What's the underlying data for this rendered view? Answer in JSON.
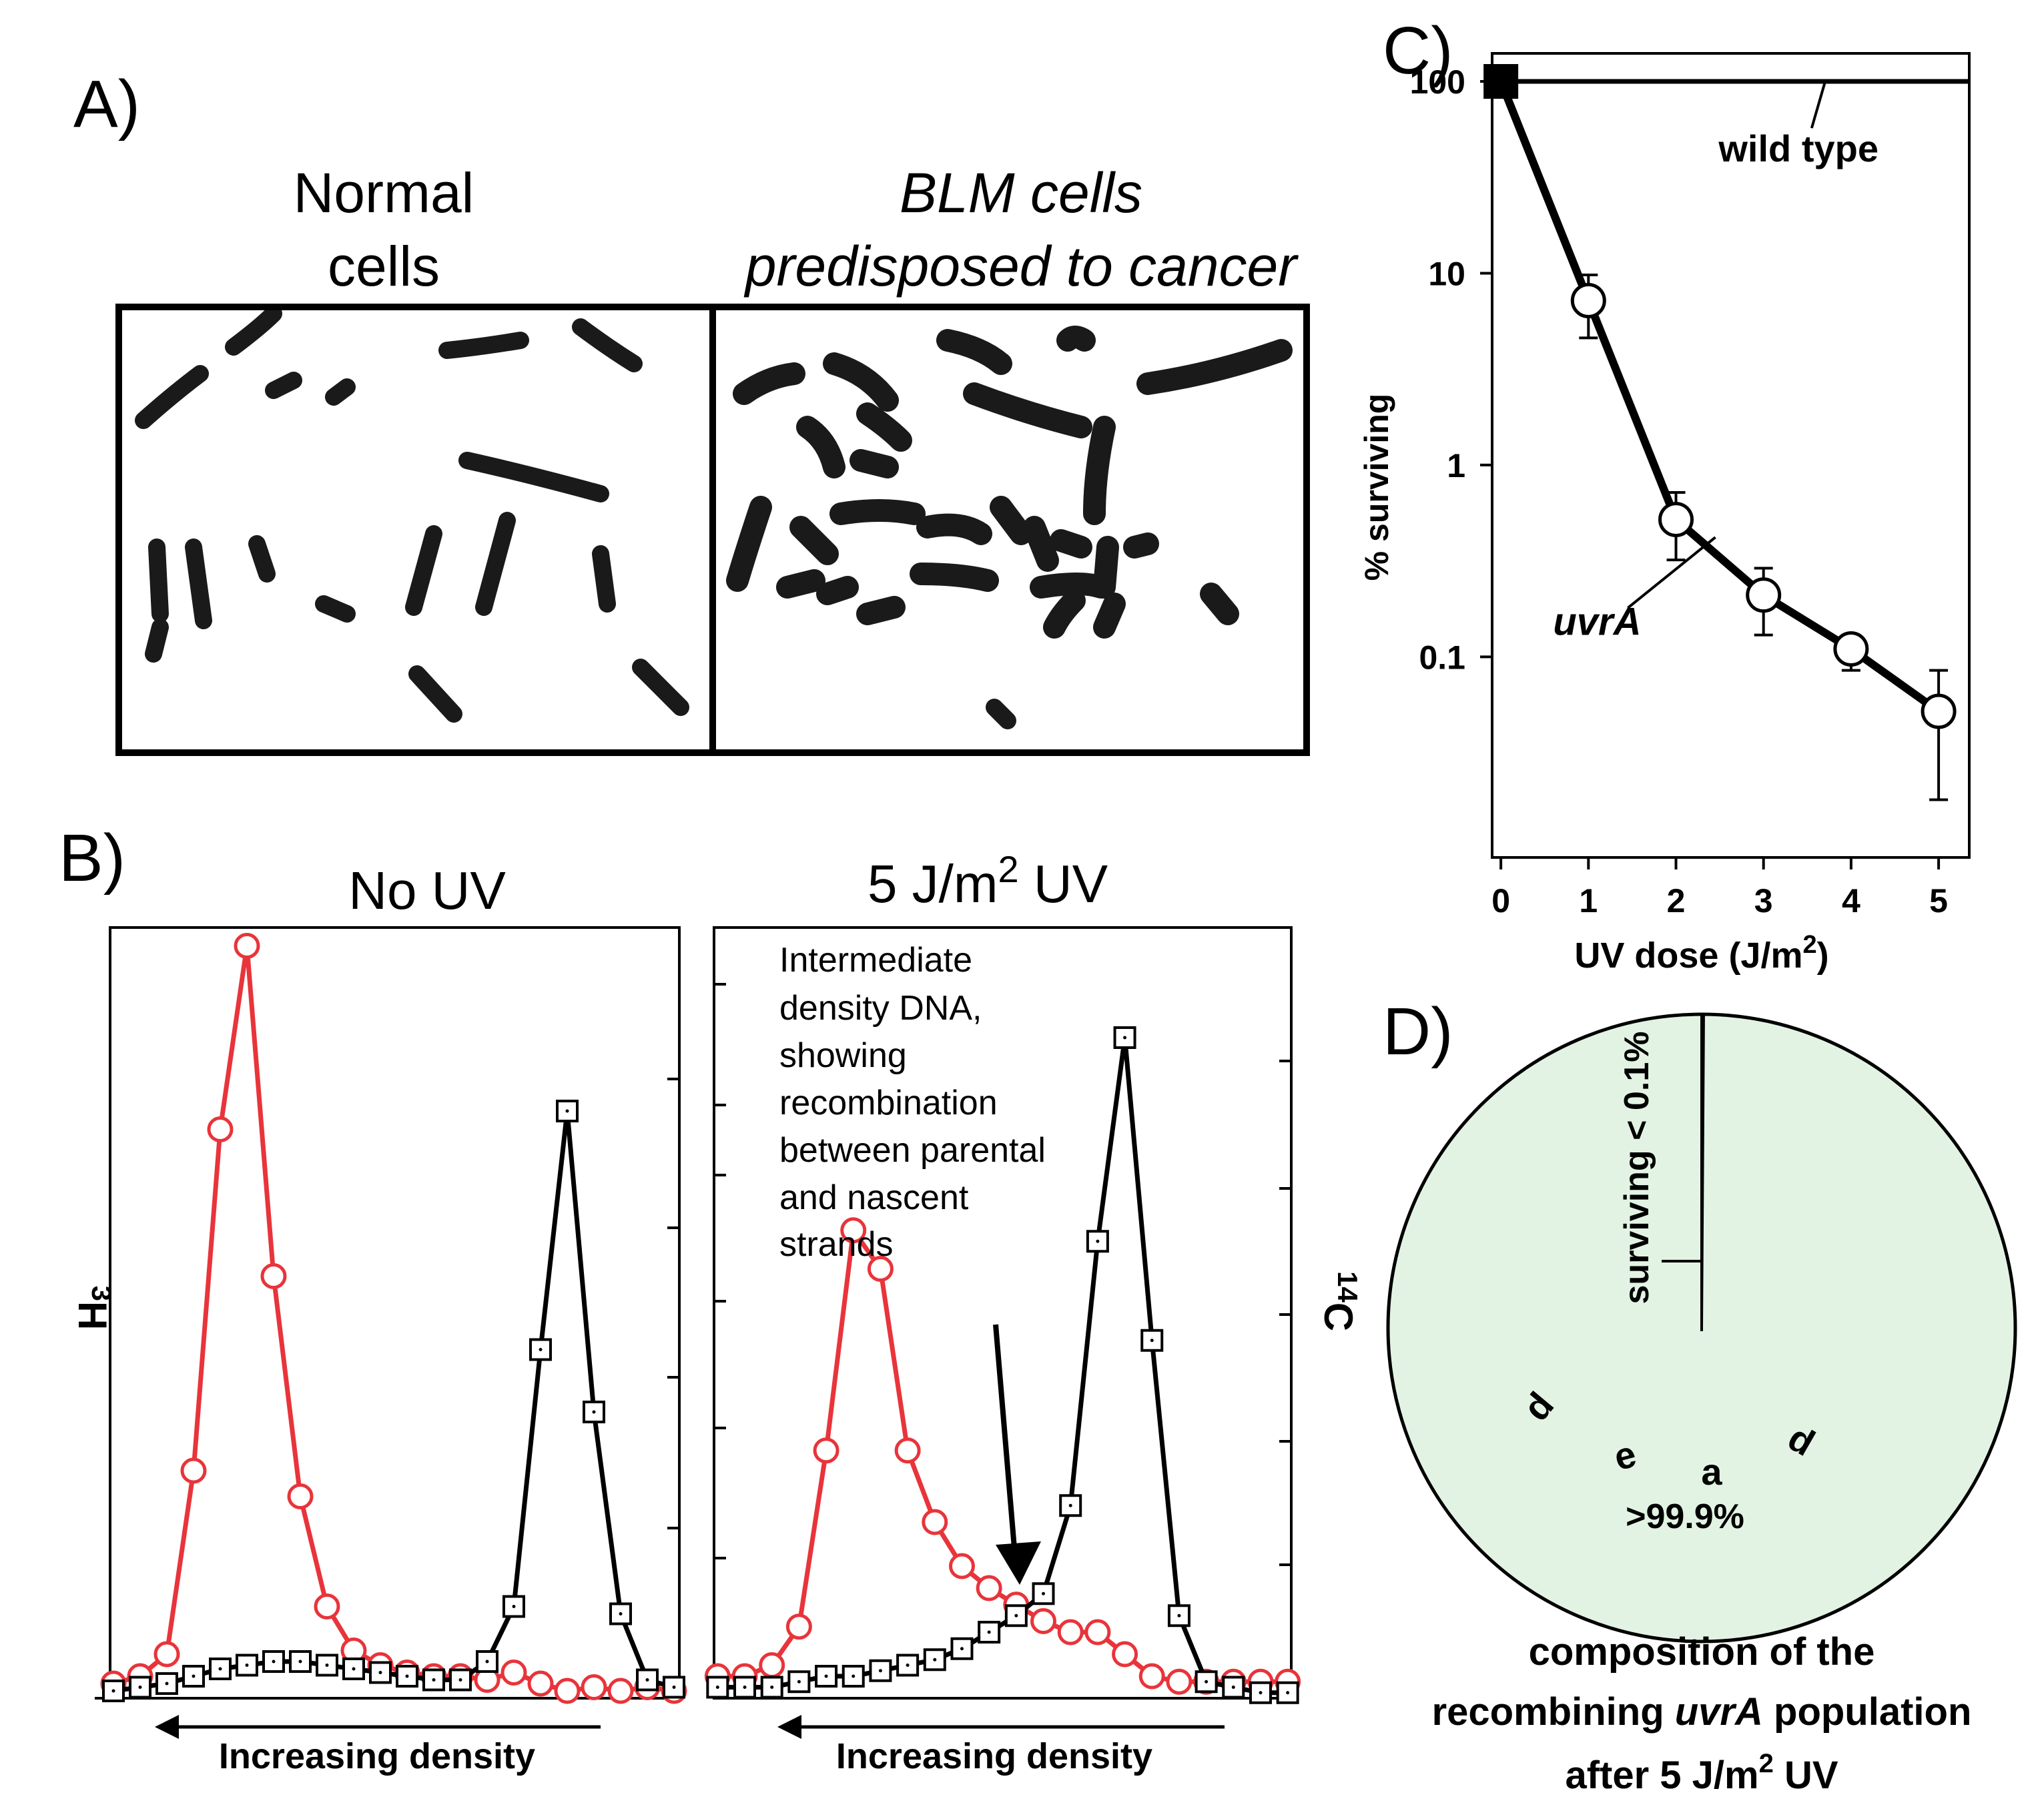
{
  "colors": {
    "red": "#e8343a",
    "black": "#000000",
    "pie_fill": "#e2f3e3",
    "chromosome": "#1a1a1a"
  },
  "panelA": {
    "label": "A)",
    "normal_title_1": "Normal",
    "normal_title_2": "cells",
    "blm_title_1": "BLM cells",
    "blm_title_2": "predisposed to cancer"
  },
  "panelB": {
    "label": "B)"
  },
  "panelC": {
    "label": "C)"
  },
  "panelD": {
    "label": "D)",
    "surviving_label": "surviving < 0.1%",
    "dead_letters": [
      "d",
      "e",
      "a",
      "d"
    ],
    "dead_percent": ">99.9%",
    "caption_line1": "composition of the",
    "caption_line2_pre": "recombining ",
    "caption_line2_italic": "uvrA",
    "caption_line2_post": " population",
    "caption_line3_pre": "after 5 J/m",
    "caption_line3_sup": "2",
    "caption_line3_post": " UV"
  },
  "chart_data": [
    {
      "id": "B-left",
      "type": "line",
      "title": "No UV",
      "xlabel": "Increasing density",
      "ylabel_left": "3H",
      "x": [
        1,
        2,
        3,
        4,
        5,
        6,
        7,
        8,
        9,
        10,
        11,
        12,
        13,
        14,
        15,
        16,
        17,
        18,
        19,
        20,
        21,
        22
      ],
      "series": [
        {
          "name": "3H",
          "color": "red",
          "marker": "circle",
          "values": [
            0.4,
            0.6,
            1.2,
            6.2,
            15.5,
            20.5,
            11.5,
            5.5,
            2.5,
            1.3,
            0.9,
            0.7,
            0.6,
            0.6,
            0.5,
            0.7,
            0.4,
            0.2,
            0.3,
            0.2,
            0.3,
            0.2
          ]
        },
        {
          "name": "14C",
          "color": "black",
          "marker": "square",
          "values": [
            0.2,
            0.3,
            0.4,
            0.6,
            0.8,
            0.9,
            1.0,
            1.0,
            0.9,
            0.8,
            0.7,
            0.6,
            0.5,
            0.5,
            1.0,
            2.5,
            9.5,
            16.0,
            7.8,
            2.3,
            0.5,
            0.3
          ]
        }
      ],
      "ylim": [
        0,
        21
      ],
      "xlim": [
        0.5,
        22.5
      ]
    },
    {
      "id": "B-right",
      "type": "line",
      "title_pre": "5 J/m",
      "title_sup": "2",
      "title_post": " UV",
      "xlabel": "Increasing density",
      "ylabel_right": "14C",
      "annotation": [
        "Intermediate",
        "density DNA,",
        "showing",
        "recombination",
        "between parental",
        "and nascent",
        "strands"
      ],
      "x": [
        1,
        2,
        3,
        4,
        5,
        6,
        7,
        8,
        9,
        10,
        11,
        12,
        13,
        14,
        15,
        16,
        17,
        18,
        19,
        20,
        21,
        22
      ],
      "series": [
        {
          "name": "3H",
          "color": "red",
          "marker": "circle",
          "values": [
            0.4,
            0.4,
            0.6,
            1.3,
            4.5,
            8.5,
            7.8,
            4.5,
            3.2,
            2.4,
            2.0,
            1.7,
            1.4,
            1.2,
            1.2,
            0.8,
            0.4,
            0.3,
            0.3,
            0.3,
            0.3,
            0.3
          ]
        },
        {
          "name": "14C",
          "color": "black",
          "marker": "square",
          "values": [
            0.2,
            0.2,
            0.2,
            0.3,
            0.4,
            0.4,
            0.5,
            0.6,
            0.7,
            0.9,
            1.2,
            1.5,
            1.9,
            3.5,
            8.3,
            12.0,
            6.5,
            1.5,
            0.3,
            0.2,
            0.1,
            0.1
          ]
        }
      ],
      "ylim": [
        0,
        14
      ],
      "xlim": [
        0.5,
        22.5
      ]
    },
    {
      "id": "C",
      "type": "line",
      "yscale": "log",
      "xlabel_pre": "UV dose (J/m",
      "xlabel_sup": "2",
      "xlabel_post": ")",
      "ylabel": "% surviving",
      "xlim": [
        -0.1,
        5.35
      ],
      "ylim": [
        0.009,
        140
      ],
      "xticks": [
        0,
        1,
        2,
        3,
        4,
        5
      ],
      "yticks": [
        100,
        10,
        1,
        0.1
      ],
      "ytick_labels": [
        "100",
        "10",
        "1",
        "0.1"
      ],
      "series": [
        {
          "name": "wild type",
          "marker": "square",
          "x": [
            0,
            5.35
          ],
          "values": [
            100,
            100
          ]
        },
        {
          "name": "uvrA",
          "marker": "circle",
          "x": [
            0,
            1,
            2,
            3,
            4,
            5
          ],
          "values": [
            100,
            7.2,
            0.52,
            0.21,
            0.11,
            0.052
          ],
          "err_low": [
            100,
            4.6,
            0.32,
            0.13,
            0.085,
            0.018
          ],
          "err_high": [
            100,
            9.8,
            0.72,
            0.29,
            0.125,
            0.085
          ]
        }
      ]
    },
    {
      "id": "D",
      "type": "pie",
      "labels": [
        "surviving < 0.1%",
        "dead >99.9%"
      ],
      "values": [
        0.1,
        99.9
      ]
    }
  ]
}
